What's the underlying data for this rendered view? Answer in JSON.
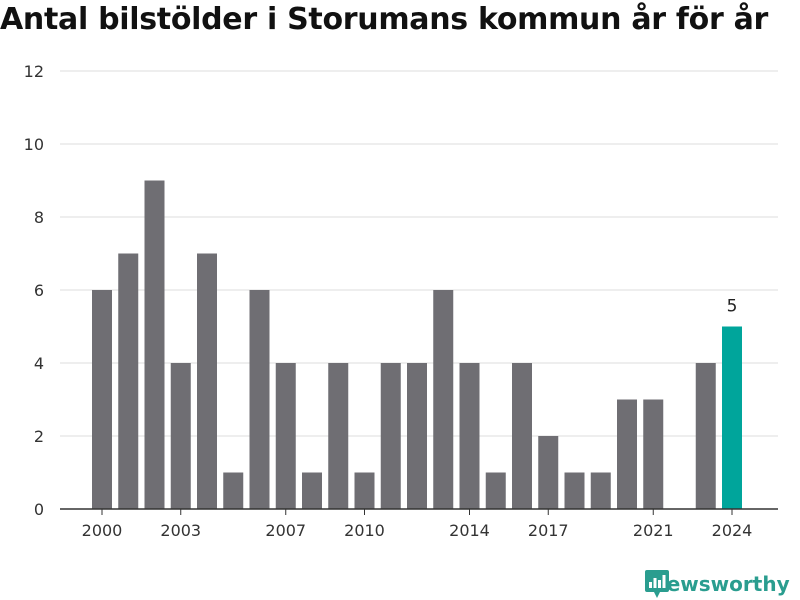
{
  "title": "Antal bilstölder i Storumans kommun år för år",
  "brand": {
    "name": "Newsworthy",
    "icon": "bar-chart-logo-icon",
    "color": "#2a9d8f"
  },
  "chart_data": {
    "type": "bar",
    "title": "Antal bilstölder i Storumans kommun år för år",
    "xlabel": "",
    "ylabel": "",
    "ylim": [
      0,
      12
    ],
    "yticks": [
      0,
      2,
      4,
      6,
      8,
      10,
      12
    ],
    "grid": true,
    "legend": "none",
    "categories": [
      2000,
      2001,
      2002,
      2003,
      2004,
      2005,
      2006,
      2007,
      2008,
      2009,
      2010,
      2011,
      2012,
      2013,
      2014,
      2015,
      2016,
      2017,
      2018,
      2019,
      2020,
      2021,
      2022,
      2023,
      2024
    ],
    "values": [
      6,
      7,
      9,
      4,
      7,
      1,
      6,
      4,
      1,
      4,
      1,
      4,
      4,
      6,
      4,
      1,
      4,
      2,
      1,
      1,
      3,
      3,
      0,
      4,
      5
    ],
    "xtick_labels": [
      "2000",
      "2003",
      "2007",
      "2010",
      "2014",
      "2017",
      "2021",
      "2024"
    ],
    "highlight": {
      "category": 2024,
      "label": "5"
    },
    "colors": {
      "bar": "#6f6e73",
      "highlight": "#00a59b",
      "grid": "#dcdcdc",
      "axis": "#333333"
    }
  }
}
